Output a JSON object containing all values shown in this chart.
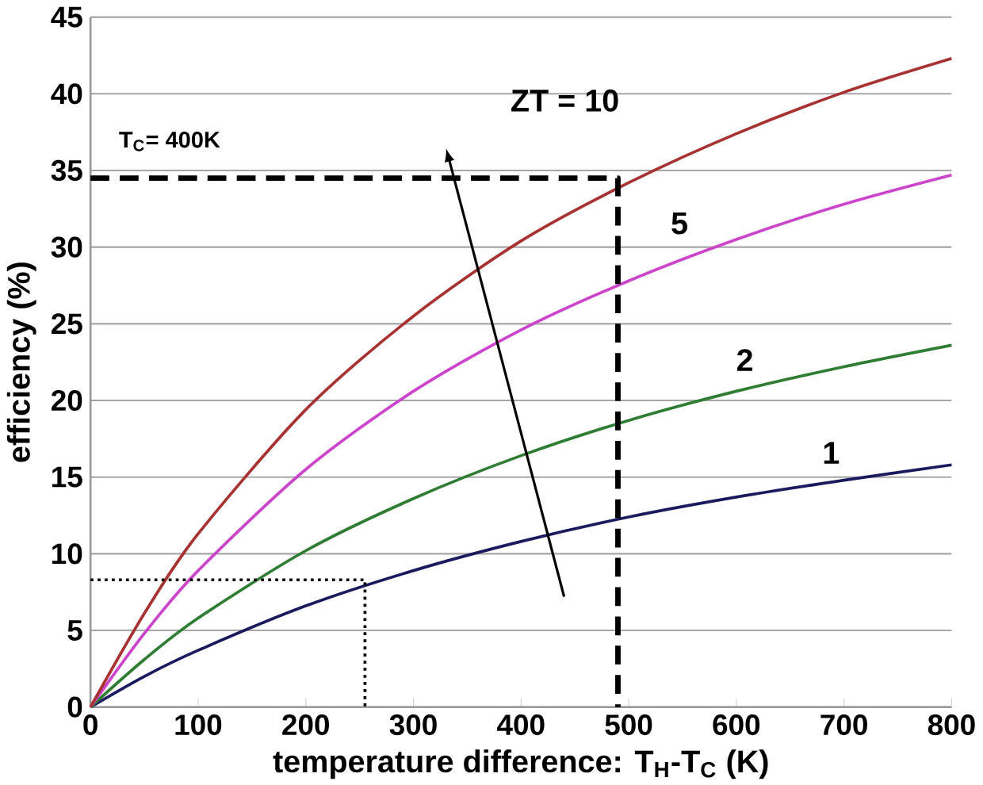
{
  "chart_data": {
    "type": "line",
    "xlabel": "temperature difference: T$_{H}$-T$_{C}$ (K)",
    "ylabel": "efficiency (%)",
    "x": [
      0,
      50,
      100,
      200,
      300,
      400,
      500,
      600,
      700,
      800
    ],
    "series": [
      {
        "name": "1",
        "color": "#1a1a5e",
        "values": [
          0,
          2.0,
          3.7,
          6.6,
          8.9,
          10.8,
          12.4,
          13.7,
          14.8,
          15.8
        ]
      },
      {
        "name": "2",
        "color": "#2e7d32",
        "values": [
          0,
          3.1,
          5.8,
          10.2,
          13.6,
          16.4,
          18.7,
          20.6,
          22.2,
          23.6
        ]
      },
      {
        "name": "5",
        "color": "#cc44cc",
        "values": [
          0,
          4.8,
          8.9,
          15.5,
          20.6,
          24.6,
          27.8,
          30.5,
          32.8,
          34.7
        ]
      },
      {
        "name": "ZT = 10",
        "color": "#a83232",
        "values": [
          0,
          6.1,
          11.3,
          19.4,
          25.5,
          30.4,
          34.2,
          37.4,
          40.1,
          42.3
        ]
      },
      {
        "type": "line",
        "color": "#000000",
        "line_style": "dashed",
        "x": [
          0,
          490,
          490
        ],
        "values": [
          34.5,
          34.5,
          0
        ]
      },
      {
        "type": "line",
        "color": "#000000",
        "line_style": "dotted",
        "x": [
          0,
          255,
          255
        ],
        "values": [
          8.3,
          8.3,
          0
        ]
      }
    ],
    "annotations": [
      "T$_{C}$= 400K"
    ],
    "xlim": [
      0,
      800
    ],
    "ylim": [
      0,
      45
    ],
    "xticks": [
      0,
      100,
      200,
      300,
      400,
      500,
      600,
      700,
      800
    ],
    "yticks": [
      0,
      5,
      10,
      15,
      20,
      25,
      30,
      35,
      40,
      45
    ],
    "grid": "y",
    "line_style": "solid",
    "marker": "none"
  }
}
